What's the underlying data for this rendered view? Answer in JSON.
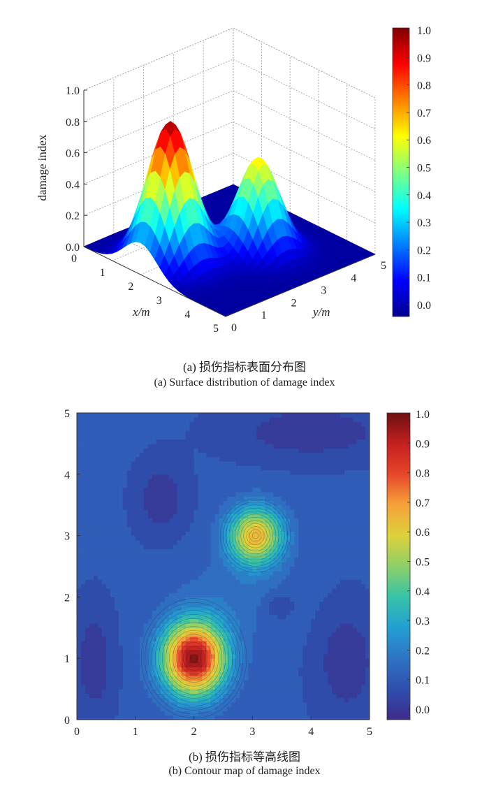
{
  "colormap": [
    "#00008f",
    "#0000ff",
    "#0080ff",
    "#00ffff",
    "#80ff80",
    "#ffff00",
    "#ff8000",
    "#ff0000",
    "#800000"
  ],
  "contour_colormap": [
    "#3e2b8a",
    "#2f4fae",
    "#2f73c4",
    "#22a0d2",
    "#37c3a8",
    "#8dd067",
    "#ddd13b",
    "#f5a33a",
    "#e8452a",
    "#c42020",
    "#6f1010"
  ],
  "captions": {
    "a_zh": "(a) 损伤指标表面分布图",
    "a_en": "(a) Surface distribution of damage index",
    "b_zh": "(b) 损伤指标等高线图",
    "b_en": "(b) Contour map of damage index"
  },
  "chart_data": [
    {
      "type": "surface",
      "title": "",
      "zlabel": "damage index",
      "xlabel": "x/m",
      "ylabel": "y/m",
      "xlim": [
        0,
        5
      ],
      "ylim": [
        0,
        5
      ],
      "zlim": [
        0,
        1
      ],
      "x_ticks": [
        "0",
        "1",
        "2",
        "3",
        "4",
        "5"
      ],
      "y_ticks": [
        "0",
        "1",
        "2",
        "3",
        "4",
        "5"
      ],
      "z_ticks": [
        "0.0",
        "0.2",
        "0.4",
        "0.6",
        "0.8",
        "1.0"
      ],
      "colorbar_ticks": [
        "0.0",
        "0.1",
        "0.2",
        "0.3",
        "0.4",
        "0.5",
        "0.6",
        "0.7",
        "0.8",
        "0.9",
        "1.0"
      ],
      "grid": true,
      "peaks": [
        {
          "x": 2,
          "y": 1,
          "value": 0.9
        },
        {
          "x": 3,
          "y": 3,
          "value": 0.6
        }
      ]
    },
    {
      "type": "contour",
      "title": "",
      "xlabel": "",
      "ylabel": "",
      "xlim": [
        0,
        5
      ],
      "ylim": [
        0,
        5
      ],
      "x_ticks": [
        "0",
        "1",
        "2",
        "3",
        "4",
        "5"
      ],
      "y_ticks": [
        "0",
        "1",
        "2",
        "3",
        "4",
        "5"
      ],
      "colorbar_ticks": [
        "0.0",
        "0.1",
        "0.2",
        "0.3",
        "0.4",
        "0.5",
        "0.6",
        "0.7",
        "0.8",
        "0.9",
        "1.0"
      ],
      "peaks": [
        {
          "x": 2,
          "y": 1,
          "value": 0.95
        },
        {
          "x": 3.05,
          "y": 3,
          "value": 0.65
        }
      ]
    }
  ]
}
